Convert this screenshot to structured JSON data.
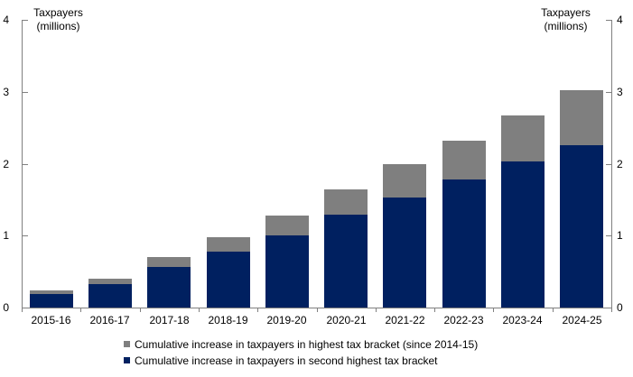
{
  "y_axis_title_left": {
    "line1": "Taxpayers",
    "line2": "(millions)"
  },
  "y_axis_title_right": {
    "line1": "Taxpayers",
    "line2": "(millions)"
  },
  "chart_data": {
    "type": "bar",
    "stacked": true,
    "title": "",
    "categories": [
      "2015-16",
      "2016-17",
      "2017-18",
      "2018-19",
      "2019-20",
      "2020-21",
      "2021-22",
      "2022-23",
      "2023-24",
      "2024-25"
    ],
    "series": [
      {
        "name": "Cumulative increase in taxpayers in second highest tax bracket",
        "color": "#002060",
        "values": [
          0.19,
          0.32,
          0.56,
          0.78,
          1.01,
          1.29,
          1.54,
          1.78,
          2.03,
          2.26
        ]
      },
      {
        "name": "Cumulative increase in taxpayers in highest tax bracket (since 2014-15)",
        "color": "#7f7f7f",
        "values": [
          0.05,
          0.08,
          0.14,
          0.2,
          0.27,
          0.35,
          0.46,
          0.54,
          0.64,
          0.76
        ]
      }
    ],
    "ylabel": "Taxpayers (millions)",
    "ylim": [
      0,
      4
    ],
    "yticks": [
      "0",
      "1",
      "2",
      "3",
      "4"
    ],
    "grid": false,
    "legend_position": "bottom",
    "axis_color": "#808080",
    "text_color": "#000000"
  },
  "legend": {
    "items": [
      {
        "label": "Cumulative increase in taxpayers in highest tax bracket (since 2014-15)",
        "series_index": 1
      },
      {
        "label": "Cumulative increase in taxpayers in second highest tax bracket",
        "series_index": 0
      }
    ]
  }
}
